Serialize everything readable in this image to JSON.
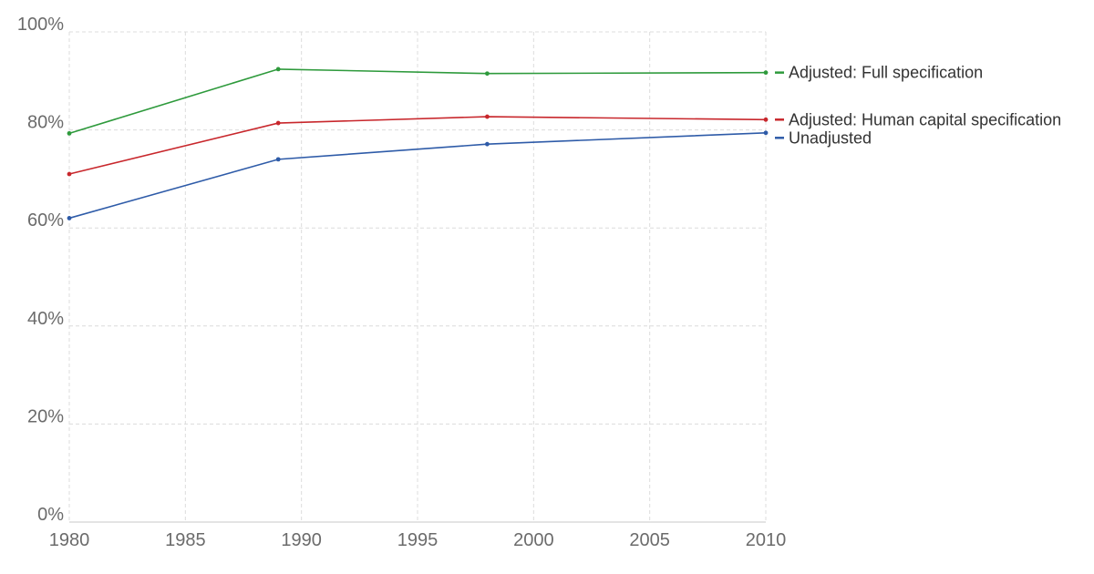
{
  "chart_data": {
    "type": "line",
    "title": "",
    "xlabel": "",
    "ylabel": "",
    "x": [
      1980,
      1989,
      1998,
      2010
    ],
    "xlim": [
      1980,
      2010
    ],
    "ylim": [
      0,
      100
    ],
    "y_unit": "%",
    "x_ticks": [
      1980,
      1985,
      1990,
      1995,
      2000,
      2005,
      2010
    ],
    "y_ticks": [
      0,
      20,
      40,
      60,
      80,
      100
    ],
    "x_tick_labels": [
      "1980",
      "1985",
      "1990",
      "1995",
      "2000",
      "2005",
      "2010"
    ],
    "y_tick_labels": [
      "0%",
      "20%",
      "40%",
      "60%",
      "80%",
      "100%"
    ],
    "grid": true,
    "legend_placement": "right (inline labels at line ends)",
    "series": [
      {
        "name": "Adjusted: Full specification",
        "color": "#2e9a3c",
        "values": [
          79.3,
          92.4,
          91.5,
          91.7
        ]
      },
      {
        "name": "Adjusted: Human capital specification",
        "color": "#c8272c",
        "values": [
          71.0,
          81.4,
          82.7,
          82.1
        ]
      },
      {
        "name": "Unadjusted",
        "color": "#2e5ba8",
        "values": [
          62.0,
          74.0,
          77.1,
          79.4
        ]
      }
    ]
  }
}
